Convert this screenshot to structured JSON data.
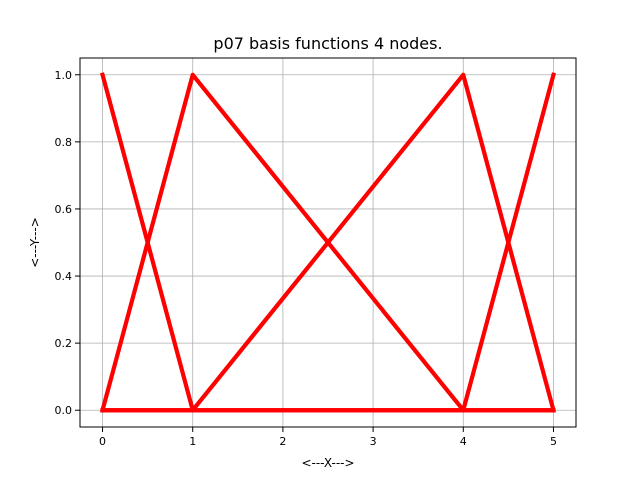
{
  "chart_data": {
    "type": "line",
    "title": "p07 basis functions 4 nodes.",
    "xlabel": "<---X--->",
    "ylabel": "<---Y--->",
    "xlim": [
      -0.25,
      5.25
    ],
    "ylim": [
      -0.05,
      1.05
    ],
    "xticks": [
      0,
      1,
      2,
      3,
      4,
      5
    ],
    "yticks": [
      0.0,
      0.2,
      0.4,
      0.6,
      0.8,
      1.0
    ],
    "xtick_labels": [
      "0",
      "1",
      "2",
      "3",
      "4",
      "5"
    ],
    "ytick_labels": [
      "0.0",
      "0.2",
      "0.4",
      "0.6",
      "0.8",
      "1.0"
    ],
    "grid": true,
    "line_color": "#ff0000",
    "series": [
      {
        "x": [
          0,
          1,
          4,
          5
        ],
        "y": [
          1,
          0,
          0,
          0
        ]
      },
      {
        "x": [
          0,
          1,
          4,
          5
        ],
        "y": [
          0,
          1,
          0,
          0
        ]
      },
      {
        "x": [
          0,
          1,
          4,
          5
        ],
        "y": [
          0,
          0,
          1,
          0
        ]
      },
      {
        "x": [
          0,
          1,
          4,
          5
        ],
        "y": [
          0,
          0,
          0,
          1
        ]
      }
    ]
  }
}
